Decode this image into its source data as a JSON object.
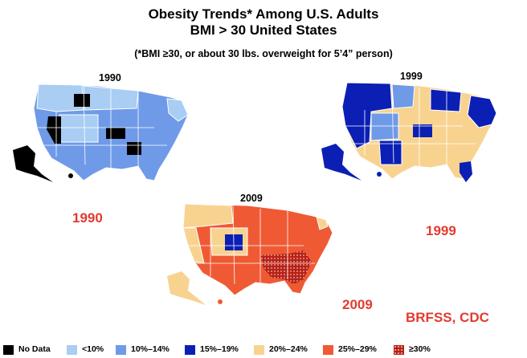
{
  "title": {
    "line1": "Obesity Trends* Among U.S. Adults",
    "line2": "BMI > 30 United States",
    "note": "(*BMI ≥30, or about 30 lbs. overweight for 5’4” person)"
  },
  "maps": {
    "map1990": {
      "year": "1990"
    },
    "map1999": {
      "year": "1999"
    },
    "map2009": {
      "year": "2009"
    }
  },
  "labels": {
    "y1990": "1990",
    "y1999": "1999",
    "y2009": "2009"
  },
  "source": "BRFSS, CDC",
  "legend": [
    {
      "label": "No Data",
      "color": "#000000"
    },
    {
      "label": "<10%",
      "color": "#a9cdf3"
    },
    {
      "label": "10%–14%",
      "color": "#6e9ae8"
    },
    {
      "label": "15%–19%",
      "color": "#0b1fb5"
    },
    {
      "label": "20%–24%",
      "color": "#f8d390"
    },
    {
      "label": "25%–29%",
      "color": "#ef5a34"
    },
    {
      "label": "≥30%",
      "color": "#b52218"
    }
  ]
}
